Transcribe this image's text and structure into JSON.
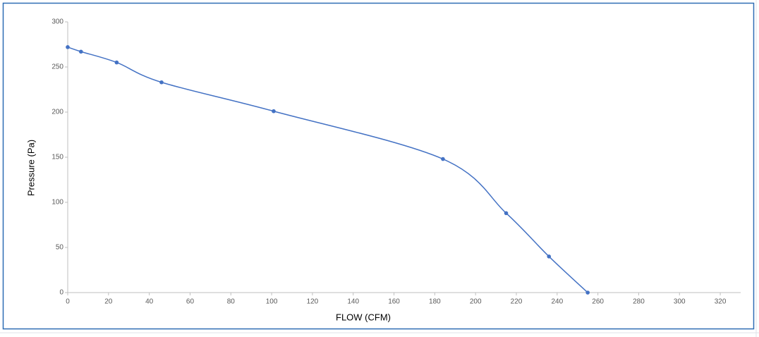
{
  "chart_data": {
    "type": "scatter-line",
    "x_label": "FLOW (CFM)",
    "y_label": "Pressure (Pa)",
    "series": [
      {
        "color": "#4472c4",
        "x": [
          0,
          6.5,
          24,
          46,
          101,
          184,
          215,
          236,
          255
        ],
        "values": [
          272,
          267,
          255,
          233,
          201,
          148,
          88,
          40,
          0
        ]
      }
    ],
    "xlim": [
      0,
      330
    ],
    "xticks": [
      0,
      20,
      40,
      60,
      80,
      100,
      120,
      140,
      160,
      180,
      200,
      220,
      240,
      260,
      280,
      300,
      320
    ],
    "ylim": [
      0,
      300
    ],
    "yticks": [
      0,
      50,
      100,
      150,
      200,
      250,
      300
    ],
    "smooth": true,
    "grid": false
  }
}
